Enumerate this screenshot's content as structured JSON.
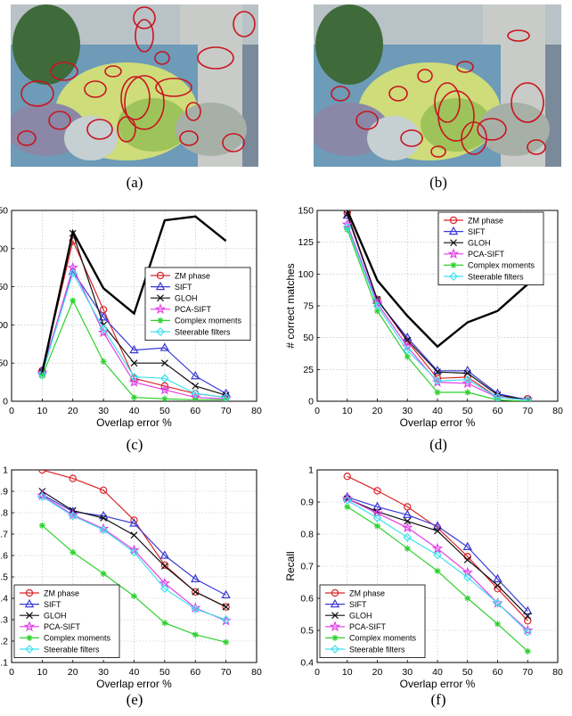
{
  "captions": [
    "(a)",
    "(b)",
    "(c)",
    "(d)",
    "(e)",
    "(f)"
  ],
  "colors": {
    "ZM phase": "#d9262a",
    "SIFT": "#3a3ad6",
    "GLOH": "#111111",
    "PCA-SIFT": "#e23fe6",
    "Complex moments": "#2ed12e",
    "Steerable filters": "#3fe1ee",
    "ellipse": "#c8141e"
  },
  "chart_data": [
    {
      "id": "c",
      "type": "line",
      "x": [
        10,
        20,
        30,
        40,
        50,
        60,
        70
      ],
      "xlabel": "Overlap error %",
      "ylabel": "",
      "xlim": [
        0,
        80
      ],
      "ylim": [
        0,
        250
      ],
      "xticks": [
        "0",
        "10",
        "20",
        "30",
        "40",
        "50",
        "60",
        "70",
        "80"
      ],
      "yticks": [
        "0",
        "50",
        "100",
        "150",
        "200",
        "250"
      ],
      "ytick_labels": [
        "0",
        "50",
        "00",
        "50",
        "00",
        "50"
      ],
      "grid": true,
      "legend": "right",
      "series": [
        {
          "name": "ZM phase",
          "marker": "circle",
          "values": [
            40,
            210,
            120,
            30,
            20,
            10,
            5
          ]
        },
        {
          "name": "SIFT",
          "marker": "triangle",
          "values": [
            40,
            170,
            110,
            67,
            70,
            33,
            10
          ]
        },
        {
          "name": "GLOH",
          "marker": "x",
          "values": [
            38,
            220,
            100,
            50,
            50,
            20,
            8
          ]
        },
        {
          "name": "PCA-SIFT",
          "marker": "star",
          "values": [
            37,
            175,
            90,
            25,
            15,
            5,
            3
          ]
        },
        {
          "name": "Complex moments",
          "marker": "asterisk",
          "values": [
            33,
            132,
            52,
            5,
            3,
            2,
            2
          ]
        },
        {
          "name": "Steerable filters",
          "marker": "diamond",
          "values": [
            36,
            168,
            95,
            32,
            30,
            10,
            5
          ]
        },
        {
          "name": "",
          "marker": "none",
          "values": [
            38,
            222,
            148,
            115,
            237,
            242,
            210
          ]
        }
      ]
    },
    {
      "id": "d",
      "type": "line",
      "x": [
        10,
        20,
        30,
        40,
        50,
        60,
        70
      ],
      "xlabel": "Overlap error %",
      "ylabel": "# correct matches",
      "xlim": [
        0,
        80
      ],
      "ylim": [
        0,
        150
      ],
      "xticks": [
        "0",
        "10",
        "20",
        "30",
        "40",
        "50",
        "60",
        "70",
        "80"
      ],
      "yticks": [
        "0",
        "25",
        "50",
        "75",
        "100",
        "125",
        "150"
      ],
      "grid": true,
      "legend": "top-right",
      "series": [
        {
          "name": "ZM phase",
          "marker": "circle",
          "values": [
            148,
            80,
            47,
            18,
            19,
            3,
            2
          ]
        },
        {
          "name": "SIFT",
          "marker": "triangle",
          "values": [
            146,
            79,
            50,
            24,
            24,
            6,
            1
          ]
        },
        {
          "name": "GLOH",
          "marker": "x",
          "values": [
            147,
            80,
            48,
            23,
            22,
            5,
            1
          ]
        },
        {
          "name": "PCA-SIFT",
          "marker": "star",
          "values": [
            139,
            77,
            43,
            15,
            14,
            3,
            1
          ]
        },
        {
          "name": "Complex moments",
          "marker": "asterisk",
          "values": [
            135,
            71,
            35,
            7,
            7,
            1,
            0
          ]
        },
        {
          "name": "Steerable filters",
          "marker": "diamond",
          "values": [
            137,
            75,
            40,
            16,
            17,
            3,
            1
          ]
        },
        {
          "name": "",
          "marker": "none",
          "values": [
            150,
            95,
            67,
            43,
            62,
            71,
            92
          ]
        }
      ]
    },
    {
      "id": "e",
      "type": "line",
      "x": [
        10,
        20,
        30,
        40,
        50,
        60,
        70
      ],
      "xlabel": "Overlap error %",
      "ylabel": "",
      "xlim": [
        0,
        80
      ],
      "ylim": [
        0.1,
        1.0
      ],
      "xticks": [
        "0",
        "10",
        "20",
        "30",
        "40",
        "50",
        "60",
        "70",
        "80"
      ],
      "yticks": [
        "0.1",
        "0.2",
        "0.3",
        "0.4",
        "0.5",
        "0.6",
        "0.7",
        "0.8",
        "0.9",
        "1"
      ],
      "ytick_labels": [
        ".1",
        ".2",
        ".3",
        ".4",
        ".5",
        ".6",
        ".7",
        ".8",
        ".9",
        "1"
      ],
      "grid": true,
      "legend": "bottom-left",
      "series": [
        {
          "name": "ZM phase",
          "marker": "circle",
          "values": [
            1.0,
            0.96,
            0.905,
            0.765,
            0.555,
            0.43,
            0.36
          ]
        },
        {
          "name": "SIFT",
          "marker": "triangle",
          "values": [
            0.885,
            0.805,
            0.785,
            0.75,
            0.6,
            0.49,
            0.415
          ]
        },
        {
          "name": "GLOH",
          "marker": "x",
          "values": [
            0.9,
            0.81,
            0.775,
            0.695,
            0.55,
            0.43,
            0.36
          ]
        },
        {
          "name": "PCA-SIFT",
          "marker": "star",
          "values": [
            0.88,
            0.79,
            0.725,
            0.625,
            0.47,
            0.355,
            0.295
          ]
        },
        {
          "name": "Complex moments",
          "marker": "asterisk",
          "values": [
            0.74,
            0.615,
            0.515,
            0.41,
            0.285,
            0.23,
            0.195
          ]
        },
        {
          "name": "Steerable filters",
          "marker": "diamond",
          "values": [
            0.875,
            0.785,
            0.72,
            0.615,
            0.445,
            0.35,
            0.3
          ]
        }
      ]
    },
    {
      "id": "f",
      "type": "line",
      "x": [
        10,
        20,
        30,
        40,
        50,
        60,
        70
      ],
      "xlabel": "Overlap error %",
      "ylabel": "Recall",
      "xlim": [
        0,
        80
      ],
      "ylim": [
        0.4,
        1.0
      ],
      "xticks": [
        "0",
        "10",
        "20",
        "30",
        "40",
        "50",
        "60",
        "70",
        "80"
      ],
      "yticks": [
        "0.4",
        "0.5",
        "0.6",
        "0.7",
        "0.8",
        "0.9",
        "1"
      ],
      "grid": true,
      "legend": "bottom-left",
      "series": [
        {
          "name": "ZM phase",
          "marker": "circle",
          "values": [
            0.98,
            0.935,
            0.885,
            0.82,
            0.73,
            0.63,
            0.53
          ]
        },
        {
          "name": "SIFT",
          "marker": "triangle",
          "values": [
            0.915,
            0.885,
            0.86,
            0.825,
            0.76,
            0.66,
            0.56
          ]
        },
        {
          "name": "GLOH",
          "marker": "x",
          "values": [
            0.91,
            0.87,
            0.84,
            0.81,
            0.72,
            0.64,
            0.545
          ]
        },
        {
          "name": "PCA-SIFT",
          "marker": "star",
          "values": [
            0.91,
            0.865,
            0.82,
            0.755,
            0.68,
            0.585,
            0.5
          ]
        },
        {
          "name": "Complex moments",
          "marker": "asterisk",
          "values": [
            0.885,
            0.825,
            0.755,
            0.685,
            0.6,
            0.52,
            0.435
          ]
        },
        {
          "name": "Steerable filters",
          "marker": "diamond",
          "values": [
            0.905,
            0.85,
            0.79,
            0.735,
            0.665,
            0.585,
            0.495
          ]
        }
      ]
    }
  ]
}
